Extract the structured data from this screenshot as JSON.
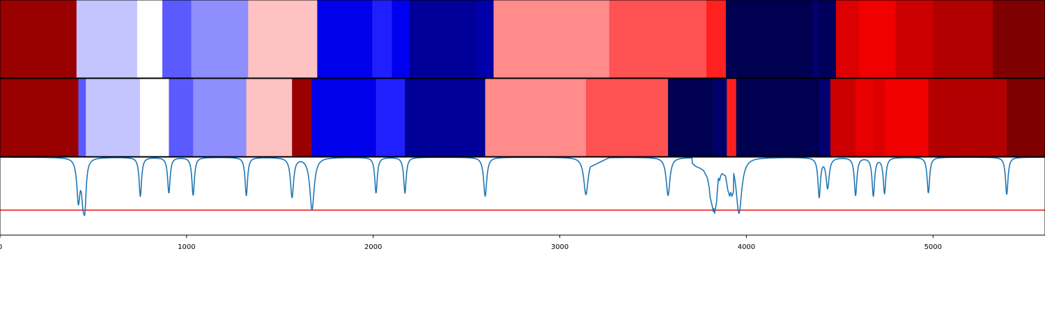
{
  "chart_data": [
    {
      "type": "heatmap",
      "title": "",
      "segments": [
        {
          "x0": 0,
          "x1": 410,
          "color": "#990000"
        },
        {
          "x0": 410,
          "x1": 735,
          "color": "#c4c4ff"
        },
        {
          "x0": 735,
          "x1": 870,
          "color": "#ffffff"
        },
        {
          "x0": 870,
          "x1": 1025,
          "color": "#5a5aff"
        },
        {
          "x0": 1025,
          "x1": 1330,
          "color": "#8e8eff"
        },
        {
          "x0": 1330,
          "x1": 1700,
          "color": "#ffc2c2"
        },
        {
          "x0": 1700,
          "x1": 1995,
          "color": "#0000ea"
        },
        {
          "x0": 1995,
          "x1": 2100,
          "color": "#2020ff"
        },
        {
          "x0": 2100,
          "x1": 2195,
          "color": "#0000f0"
        },
        {
          "x0": 2195,
          "x1": 2555,
          "color": "#000099"
        },
        {
          "x0": 2555,
          "x1": 2645,
          "color": "#0000aa"
        },
        {
          "x0": 2645,
          "x1": 3265,
          "color": "#ff8b8b"
        },
        {
          "x0": 3265,
          "x1": 3785,
          "color": "#ff5252"
        },
        {
          "x0": 3785,
          "x1": 3890,
          "color": "#ff2020"
        },
        {
          "x0": 3890,
          "x1": 4355,
          "color": "#000050"
        },
        {
          "x0": 4355,
          "x1": 4385,
          "color": "#000070"
        },
        {
          "x0": 4385,
          "x1": 4480,
          "color": "#00005a"
        },
        {
          "x0": 4480,
          "x1": 4605,
          "color": "#dd0000"
        },
        {
          "x0": 4605,
          "x1": 4800,
          "color": "#f00000"
        },
        {
          "x0": 4800,
          "x1": 5000,
          "color": "#cc0000"
        },
        {
          "x0": 5000,
          "x1": 5320,
          "color": "#b20000"
        },
        {
          "x0": 5320,
          "x1": 5600,
          "color": "#7f0000"
        }
      ]
    },
    {
      "type": "heatmap",
      "title": "",
      "segments": [
        {
          "x0": 0,
          "x1": 420,
          "color": "#990000"
        },
        {
          "x0": 420,
          "x1": 460,
          "color": "#5a5aff"
        },
        {
          "x0": 460,
          "x1": 750,
          "color": "#c4c4ff"
        },
        {
          "x0": 750,
          "x1": 905,
          "color": "#ffffff"
        },
        {
          "x0": 905,
          "x1": 1035,
          "color": "#5a5aff"
        },
        {
          "x0": 1035,
          "x1": 1320,
          "color": "#8e8eff"
        },
        {
          "x0": 1320,
          "x1": 1565,
          "color": "#ffc2c2"
        },
        {
          "x0": 1565,
          "x1": 1670,
          "color": "#990000"
        },
        {
          "x0": 1670,
          "x1": 2015,
          "color": "#0000ea"
        },
        {
          "x0": 2015,
          "x1": 2170,
          "color": "#2020ff"
        },
        {
          "x0": 2170,
          "x1": 2600,
          "color": "#000099"
        },
        {
          "x0": 2600,
          "x1": 3140,
          "color": "#ff8b8b"
        },
        {
          "x0": 3140,
          "x1": 3580,
          "color": "#ff5252"
        },
        {
          "x0": 3580,
          "x1": 3820,
          "color": "#000050"
        },
        {
          "x0": 3820,
          "x1": 3895,
          "color": "#00006a"
        },
        {
          "x0": 3895,
          "x1": 3945,
          "color": "#ff2020"
        },
        {
          "x0": 3945,
          "x1": 4390,
          "color": "#000050"
        },
        {
          "x0": 4390,
          "x1": 4450,
          "color": "#000070"
        },
        {
          "x0": 4450,
          "x1": 4585,
          "color": "#cc0000"
        },
        {
          "x0": 4585,
          "x1": 4680,
          "color": "#e80000"
        },
        {
          "x0": 4680,
          "x1": 4740,
          "color": "#dd0000"
        },
        {
          "x0": 4740,
          "x1": 4975,
          "color": "#f00000"
        },
        {
          "x0": 4975,
          "x1": 5395,
          "color": "#b20000"
        },
        {
          "x0": 5395,
          "x1": 5600,
          "color": "#7f0000"
        }
      ]
    },
    {
      "type": "line",
      "title": "",
      "xlabel": "",
      "ylabel": "",
      "xlim": [
        0,
        5600
      ],
      "ylim": [
        0,
        1
      ],
      "xticks": [
        0,
        1000,
        2000,
        3000,
        4000,
        5000
      ],
      "tick_labels": [
        "0",
        "1000",
        "2000",
        "3000",
        "4000",
        "5000"
      ],
      "baseline": 1.0,
      "dips": [
        {
          "x": 420,
          "depth": 0.53,
          "w": 10
        },
        {
          "x": 445,
          "depth": 0.43,
          "w": 10
        },
        {
          "x": 455,
          "depth": 0.47,
          "w": 8
        },
        {
          "x": 752,
          "depth": 0.5,
          "w": 8
        },
        {
          "x": 905,
          "depth": 0.46,
          "w": 8
        },
        {
          "x": 1035,
          "depth": 0.49,
          "w": 8
        },
        {
          "x": 1320,
          "depth": 0.49,
          "w": 8
        },
        {
          "x": 1565,
          "depth": 0.51,
          "w": 10
        },
        {
          "x": 1672,
          "depth": 0.67,
          "w": 14
        },
        {
          "x": 2015,
          "depth": 0.46,
          "w": 8
        },
        {
          "x": 2170,
          "depth": 0.46,
          "w": 8
        },
        {
          "x": 2600,
          "depth": 0.5,
          "w": 10
        },
        {
          "x": 3140,
          "depth": 0.48,
          "w": 14
        },
        {
          "x": 3580,
          "depth": 0.49,
          "w": 12
        },
        {
          "x": 3960,
          "depth": 0.72,
          "w": 18
        },
        {
          "x": 4390,
          "depth": 0.5,
          "w": 8
        },
        {
          "x": 4435,
          "depth": 0.39,
          "w": 10
        },
        {
          "x": 4585,
          "depth": 0.49,
          "w": 8
        },
        {
          "x": 4680,
          "depth": 0.49,
          "w": 8
        },
        {
          "x": 4740,
          "depth": 0.46,
          "w": 8
        },
        {
          "x": 4975,
          "depth": 0.46,
          "w": 8
        },
        {
          "x": 5395,
          "depth": 0.48,
          "w": 8
        }
      ],
      "noisy_region": {
        "x0": 3710,
        "x1": 3930,
        "points": [
          [
            3710,
            0.92
          ],
          [
            3730,
            0.88
          ],
          [
            3750,
            0.86
          ],
          [
            3770,
            0.83
          ],
          [
            3790,
            0.74
          ],
          [
            3800,
            0.62
          ],
          [
            3806,
            0.48
          ],
          [
            3812,
            0.42
          ],
          [
            3818,
            0.36
          ],
          [
            3822,
            0.3
          ],
          [
            3826,
            0.34
          ],
          [
            3830,
            0.28
          ],
          [
            3835,
            0.36
          ],
          [
            3840,
            0.42
          ],
          [
            3845,
            0.6
          ],
          [
            3850,
            0.73
          ],
          [
            3856,
            0.7
          ],
          [
            3862,
            0.76
          ],
          [
            3870,
            0.79
          ],
          [
            3880,
            0.77
          ],
          [
            3888,
            0.76
          ],
          [
            3895,
            0.66
          ],
          [
            3900,
            0.58
          ],
          [
            3905,
            0.54
          ],
          [
            3910,
            0.5
          ],
          [
            3916,
            0.55
          ],
          [
            3922,
            0.5
          ],
          [
            3926,
            0.52
          ],
          [
            3930,
            0.55
          ]
        ]
      },
      "shoulder_3150": {
        "x0": 3150,
        "x1": 3270,
        "level": 0.86
      },
      "threshold": {
        "y": 0.32,
        "color": "#e8120c"
      },
      "line_color": "#1f77b4"
    }
  ]
}
